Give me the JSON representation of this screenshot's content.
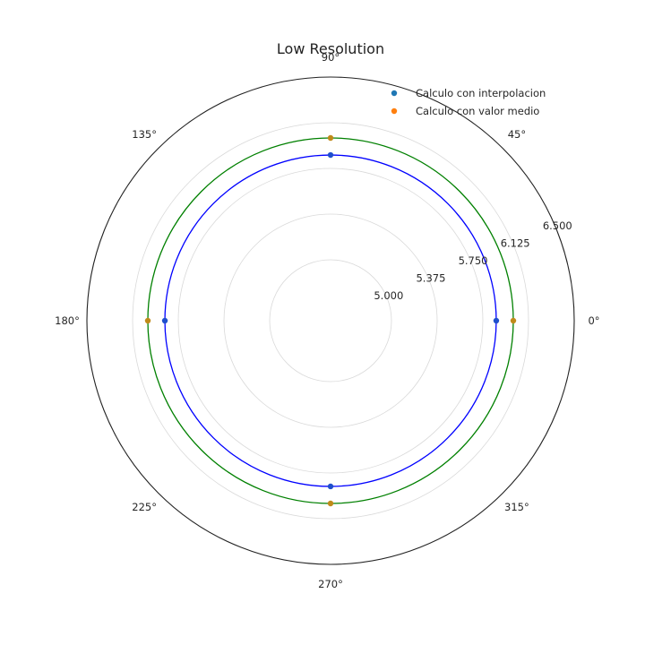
{
  "chart_data": {
    "type": "scatter",
    "projection": "polar",
    "title": "Low Resolution",
    "theta_ticks": [
      "0°",
      "45°",
      "90°",
      "135°",
      "180°",
      "225°",
      "270°",
      "315°"
    ],
    "theta_tick_degrees": [
      0,
      45,
      90,
      135,
      180,
      225,
      270,
      315
    ],
    "r_ticks": [
      "5.000",
      "5.375",
      "5.750",
      "6.125",
      "6.500"
    ],
    "r_tick_values": [
      5.0,
      5.375,
      5.75,
      6.125,
      6.5
    ],
    "r_label_angle_deg": 22.5,
    "rlim": [
      4.5,
      6.5
    ],
    "grid": true,
    "legend_position": "top-right",
    "series": [
      {
        "name": "Calculo con interpolacion",
        "marker_color": "#1f77b4",
        "dot_color": "#1f4fcc",
        "theta_deg": [
          0,
          90,
          180,
          270
        ],
        "r": [
          5.86,
          5.86,
          5.86,
          5.86
        ]
      },
      {
        "name": "Calculo con valor medio",
        "marker_color": "#ff7f0e",
        "dot_color": "#c08a1a",
        "theta_deg": [
          0,
          90,
          180,
          270
        ],
        "r": [
          6.0,
          6.0,
          6.0,
          6.0
        ]
      }
    ],
    "reference_circles": [
      {
        "r": 5.86,
        "color": "#0000ff"
      },
      {
        "r": 6.0,
        "color": "#008000"
      }
    ]
  }
}
